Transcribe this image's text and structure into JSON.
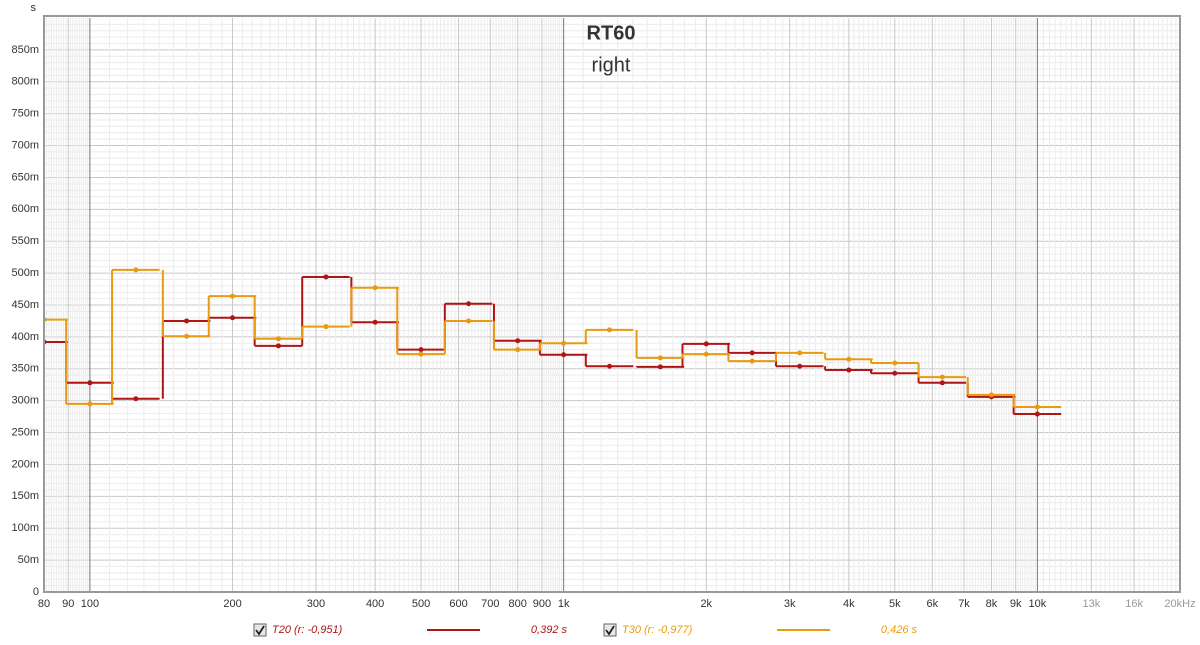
{
  "chart_data": {
    "type": "step",
    "title": "RT60",
    "subtitle": "right",
    "y_label": "s",
    "x_scale": "log",
    "grid": true,
    "xlim": [
      80,
      20000
    ],
    "ylim": [
      0,
      0.9
    ],
    "xticks": [
      80,
      90,
      100,
      200,
      300,
      400,
      500,
      600,
      700,
      800,
      900,
      {
        "value": 1000,
        "label": "1k"
      },
      {
        "value": 2000,
        "label": "2k"
      },
      {
        "value": 3000,
        "label": "3k"
      },
      {
        "value": 4000,
        "label": "4k"
      },
      {
        "value": 5000,
        "label": "5k"
      },
      {
        "value": 6000,
        "label": "6k"
      },
      {
        "value": 7000,
        "label": "7k"
      },
      {
        "value": 8000,
        "label": "8k"
      },
      {
        "value": 9000,
        "label": "9k"
      },
      {
        "value": 10000,
        "label": "10k"
      },
      {
        "value": 13000,
        "label": "13k"
      },
      {
        "value": 16000,
        "label": "16k"
      },
      {
        "value": 20000,
        "label": "20kHz"
      }
    ],
    "yticks": [
      0,
      {
        "value": 0.05,
        "label": "50m"
      },
      {
        "value": 0.1,
        "label": "100m"
      },
      {
        "value": 0.15,
        "label": "150m"
      },
      {
        "value": 0.2,
        "label": "200m"
      },
      {
        "value": 0.25,
        "label": "250m"
      },
      {
        "value": 0.3,
        "label": "300m"
      },
      {
        "value": 0.35,
        "label": "350m"
      },
      {
        "value": 0.4,
        "label": "400m"
      },
      {
        "value": 0.45,
        "label": "450m"
      },
      {
        "value": 0.5,
        "label": "500m"
      },
      {
        "value": 0.55,
        "label": "550m"
      },
      {
        "value": 0.6,
        "label": "600m"
      },
      {
        "value": 0.65,
        "label": "650m"
      },
      {
        "value": 0.7,
        "label": "700m"
      },
      {
        "value": 0.75,
        "label": "750m"
      },
      {
        "value": 0.8,
        "label": "800m"
      },
      {
        "value": 0.85,
        "label": "850m"
      }
    ],
    "x": [
      80,
      100,
      125,
      160,
      200,
      250,
      315,
      400,
      500,
      630,
      800,
      1000,
      1250,
      1600,
      2000,
      2500,
      3150,
      4000,
      5000,
      6300,
      8000,
      10000
    ],
    "series": [
      {
        "name": "T20 (r: -0,951)",
        "summary": "0,392 s",
        "color": "#b01515",
        "values": [
          0.392,
          0.328,
          0.303,
          0.425,
          0.43,
          0.386,
          0.494,
          0.423,
          0.38,
          0.452,
          0.394,
          0.372,
          0.354,
          0.353,
          0.389,
          0.375,
          0.354,
          0.348,
          0.343,
          0.328,
          0.306,
          0.279
        ]
      },
      {
        "name": "T30 (r: -0,977)",
        "summary": "0,426 s",
        "color": "#e89a10",
        "values": [
          0.427,
          0.295,
          0.505,
          0.401,
          0.464,
          0.397,
          0.416,
          0.477,
          0.373,
          0.425,
          0.38,
          0.39,
          0.411,
          0.367,
          0.373,
          0.362,
          0.375,
          0.365,
          0.359,
          0.337,
          0.309,
          0.29
        ]
      }
    ]
  }
}
